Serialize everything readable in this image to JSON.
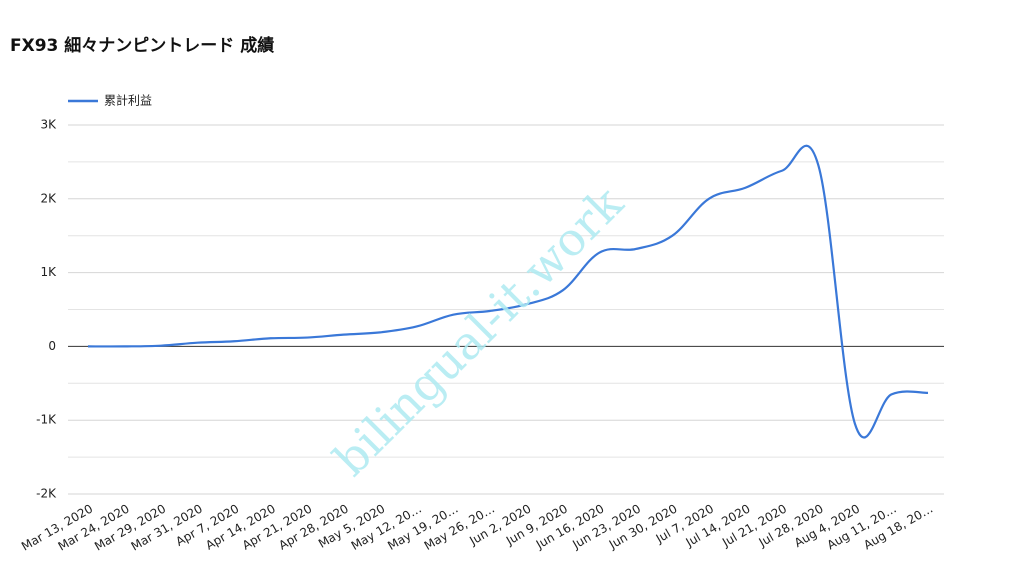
{
  "chart_data": {
    "type": "line",
    "title": "FX93 細々ナンピントレード 成績",
    "watermark": "bilingual-it.work",
    "categories": [
      "Mar 13, 2020",
      "Mar 24, 2020",
      "Mar 29, 2020",
      "Mar 31, 2020",
      "Apr 7, 2020",
      "Apr 14, 2020",
      "Apr 21, 2020",
      "Apr 28, 2020",
      "May 5, 2020",
      "May 12, 20…",
      "May 19, 20…",
      "May 26, 20…",
      "Jun 2, 2020",
      "Jun 9, 2020",
      "Jun 16, 2020",
      "Jun 23, 2020",
      "Jun 30, 2020",
      "Jul 7, 2020",
      "Jul 14, 2020",
      "Jul 21, 2020",
      "Jul 28, 2020",
      "Aug 4, 2020",
      "Aug 11, 20…",
      "Aug 18, 20…"
    ],
    "series": [
      {
        "name": "累計利益",
        "color": "#3a78d8",
        "values": [
          0,
          0,
          10,
          50,
          70,
          110,
          120,
          160,
          190,
          270,
          430,
          480,
          570,
          760,
          1270,
          1320,
          1500,
          2000,
          2150,
          2380,
          2450,
          -1050,
          -650,
          -630
        ]
      }
    ],
    "ylim": [
      -2000,
      3000
    ],
    "yticks": [
      {
        "value": -2000,
        "label": "-2K"
      },
      {
        "value": -1000,
        "label": "-1K"
      },
      0,
      {
        "value": 1000,
        "label": "1K"
      },
      {
        "value": 2000,
        "label": "2K"
      },
      {
        "value": 3000,
        "label": "3K"
      }
    ],
    "minor_yticks": [
      -1500,
      -500,
      500,
      1500,
      2500
    ],
    "grid": true,
    "legend": "top-left"
  }
}
